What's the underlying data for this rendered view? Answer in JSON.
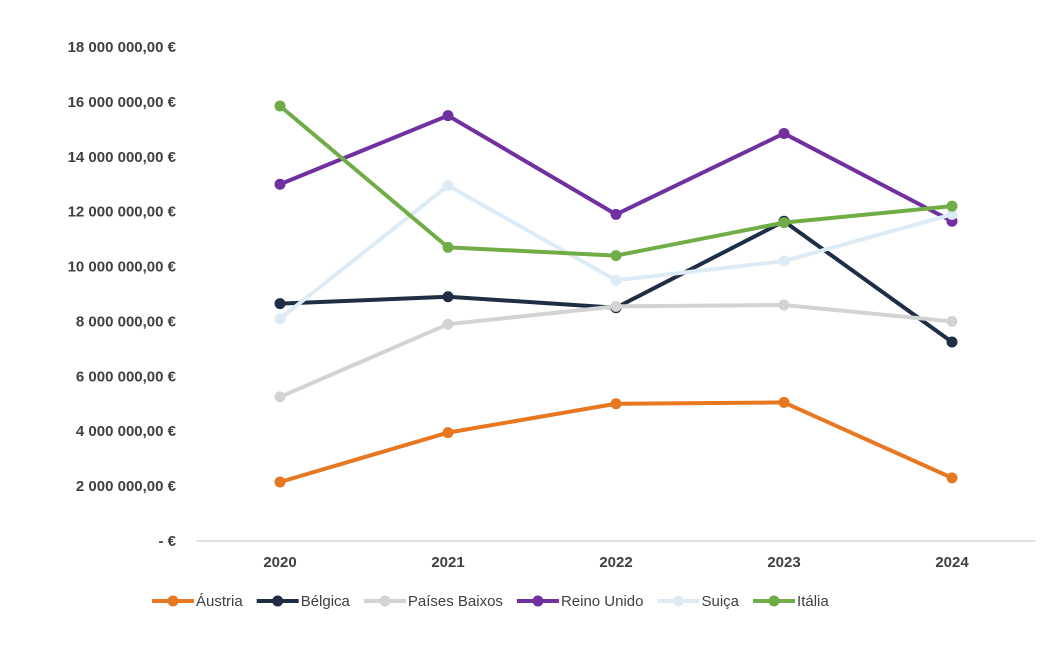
{
  "chart_data": {
    "type": "line",
    "title": "",
    "xlabel": "",
    "ylabel": "",
    "categories": [
      "2020",
      "2021",
      "2022",
      "2023",
      "2024"
    ],
    "ylim": [
      0,
      18000000
    ],
    "y_ticks": [
      0,
      2000000,
      4000000,
      6000000,
      8000000,
      10000000,
      12000000,
      14000000,
      16000000,
      18000000
    ],
    "y_tick_labels": [
      "-  €",
      "2 000 000,00 €",
      "4 000 000,00 €",
      "6 000 000,00 €",
      "8 000 000,00 €",
      "10 000 000,00 €",
      "12 000 000,00 €",
      "14 000 000,00 €",
      "16 000 000,00 €",
      "18 000 000,00 €"
    ],
    "grid": false,
    "legend_position": "bottom",
    "series": [
      {
        "name": "Áustria",
        "color": "#E87722",
        "values": [
          2150000,
          3950000,
          5000000,
          5050000,
          2300000
        ]
      },
      {
        "name": "Bélgica",
        "color": "#1F2D45",
        "values": [
          8650000,
          8900000,
          8500000,
          11650000,
          7250000
        ]
      },
      {
        "name": "Países Baixos",
        "color": "#D3D3D3",
        "values": [
          5250000,
          7900000,
          8550000,
          8600000,
          8000000
        ]
      },
      {
        "name": "Reino Unido",
        "color": "#7030A0",
        "values": [
          13000000,
          15500000,
          11900000,
          14850000,
          11650000
        ]
      },
      {
        "name": "Suiça",
        "color": "#DDEBF7",
        "values": [
          8100000,
          12950000,
          9500000,
          10200000,
          11900000
        ]
      },
      {
        "name": "Itália",
        "color": "#70AD47",
        "values": [
          15850000,
          10700000,
          10400000,
          11600000,
          12200000
        ]
      }
    ]
  }
}
